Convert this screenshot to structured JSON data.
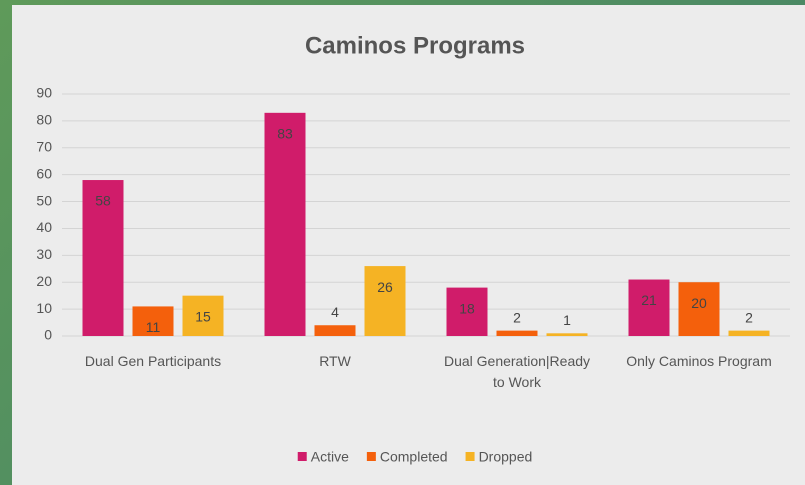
{
  "chart_data": {
    "type": "bar",
    "title": "Caminos Programs",
    "categories": [
      "Dual Gen Participants",
      "RTW",
      "Dual Generation|Ready to Work",
      "Only Caminos Program"
    ],
    "series": [
      {
        "name": "Active",
        "color": "#d01c6a",
        "values": [
          58,
          83,
          18,
          21
        ]
      },
      {
        "name": "Completed",
        "color": "#f4600c",
        "values": [
          11,
          4,
          2,
          20
        ]
      },
      {
        "name": "Dropped",
        "color": "#f5b324",
        "values": [
          15,
          26,
          1,
          2
        ]
      }
    ],
    "ylim": [
      0,
      90
    ],
    "yticks": [
      0,
      10,
      20,
      30,
      40,
      50,
      60,
      70,
      80,
      90
    ],
    "grid": true,
    "legend": "bottom"
  }
}
